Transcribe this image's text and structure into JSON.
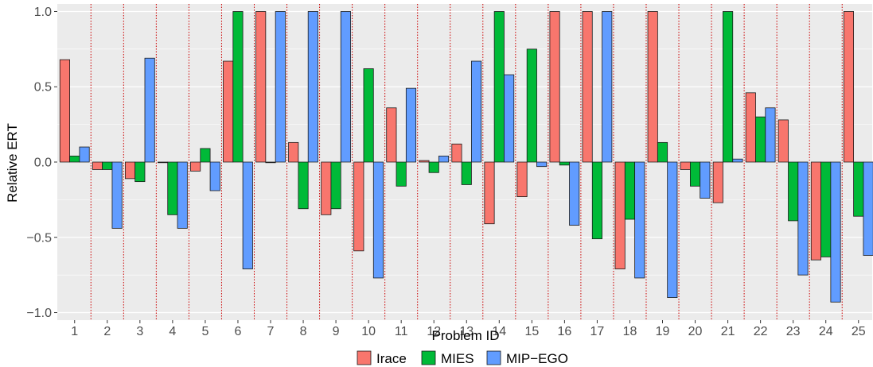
{
  "chart_data": {
    "type": "bar",
    "xlabel": "Problem ID",
    "ylabel": "Relative ERT",
    "ylim": [
      -1.05,
      1.05
    ],
    "yticks": [
      1.0,
      0.5,
      0.0,
      -0.5,
      -1.0
    ],
    "ytick_labels": [
      "1.0",
      "0.5",
      "0.0",
      "−0.5",
      "−1.0"
    ],
    "categories": [
      "1",
      "2",
      "3",
      "4",
      "5",
      "6",
      "7",
      "8",
      "9",
      "10",
      "11",
      "12",
      "13",
      "14",
      "15",
      "16",
      "17",
      "18",
      "19",
      "20",
      "21",
      "22",
      "23",
      "24",
      "25"
    ],
    "grid": true,
    "separators": "dotted red vertical lines between problems",
    "legend_position": "bottom",
    "series": [
      {
        "name": "Irace",
        "color": "#F8766D",
        "values": [
          0.68,
          -0.05,
          -0.11,
          0,
          -0.06,
          0.67,
          1.0,
          0.13,
          -0.35,
          -0.59,
          0.36,
          0.01,
          0.12,
          -0.41,
          -0.23,
          1.0,
          1.0,
          -0.71,
          1.0,
          -0.05,
          -0.27,
          0.46,
          0.28,
          -0.65,
          1.0
        ]
      },
      {
        "name": "MIES",
        "color": "#00BA38",
        "values": [
          0.04,
          -0.05,
          -0.13,
          -0.35,
          0.09,
          1.0,
          0.0,
          -0.31,
          -0.31,
          0.62,
          -0.16,
          -0.07,
          -0.15,
          1.0,
          0.75,
          -0.02,
          -0.51,
          -0.38,
          0.13,
          -0.16,
          1.0,
          0.3,
          -0.39,
          -0.63,
          -0.36
        ]
      },
      {
        "name": "MIP−EGO",
        "color": "#619CFF",
        "values": [
          0.1,
          -0.44,
          0.69,
          -0.44,
          -0.19,
          -0.71,
          1.0,
          1.0,
          1.0,
          -0.77,
          0.49,
          0.04,
          0.67,
          0.58,
          -0.03,
          -0.42,
          1.0,
          -0.77,
          -0.9,
          -0.24,
          0.02,
          0.36,
          -0.75,
          -0.93,
          -0.62
        ]
      }
    ]
  }
}
